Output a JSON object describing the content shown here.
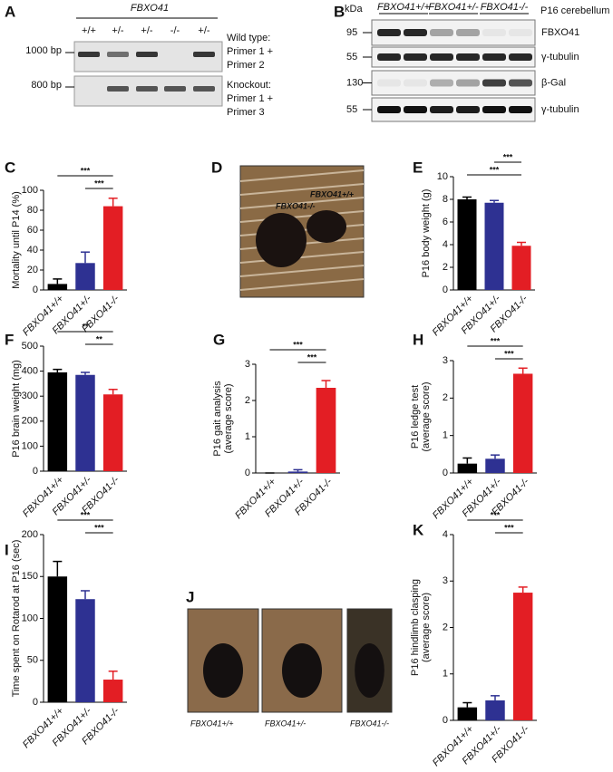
{
  "figure": {
    "A": {
      "label": "A",
      "gene": "FBXO41",
      "genotypes": [
        "+/+",
        "+/-",
        "+/-",
        "-/-",
        "+/-"
      ],
      "gels": [
        {
          "size": "1000 bp",
          "caption": [
            "Wild type:",
            "Primer 1 +",
            "Primer 2"
          ]
        },
        {
          "size": "800 bp",
          "caption": [
            "Knockout:",
            "Primer 1 +",
            "Primer 3"
          ]
        }
      ]
    },
    "B": {
      "label": "B",
      "unit": "kDa",
      "groups": [
        "FBXO41+/+",
        "FBXO41+/-",
        "FBXO41-/-"
      ],
      "tissue": "P16 cerebellum",
      "rows": [
        {
          "size": "95",
          "protein": "FBXO41"
        },
        {
          "size": "55",
          "protein": "γ-tubulin"
        },
        {
          "size": "130",
          "protein": "β-Gal"
        },
        {
          "size": "55",
          "protein": "γ-tubulin"
        }
      ]
    },
    "D": {
      "label": "D",
      "annotations": [
        "FBXO41+/+",
        "FBXO41-/-"
      ]
    },
    "J": {
      "label": "J",
      "captions": [
        "FBXO41+/+",
        "FBXO41+/-",
        "FBXO41-/-"
      ]
    }
  },
  "chart_data": [
    {
      "type": "bar",
      "panel": "C",
      "ylabel": [
        "Mortality until P14 (%)"
      ],
      "categories": [
        "FBXO41+/+",
        "FBXO41+/-",
        "FBXO41-/-"
      ],
      "values": [
        6,
        27,
        84
      ],
      "errors": [
        5,
        11,
        8
      ],
      "colors": [
        "#000000",
        "#2e3192",
        "#e31e24"
      ],
      "ylim": [
        0,
        100
      ],
      "yticks": [
        0,
        20,
        40,
        60,
        80,
        100
      ],
      "significance": [
        {
          "label": "***",
          "pair": [
            "FBXO41+/+",
            "FBXO41-/-"
          ]
        },
        {
          "label": "***",
          "pair": [
            "FBXO41+/-",
            "FBXO41-/-"
          ]
        }
      ]
    },
    {
      "type": "bar",
      "panel": "E",
      "ylabel": [
        "P16 body weight (g)"
      ],
      "categories": [
        "FBXO41+/+",
        "FBXO41+/-",
        "FBXO41-/-"
      ],
      "values": [
        8.0,
        7.7,
        3.9
      ],
      "errors": [
        0.2,
        0.2,
        0.3
      ],
      "colors": [
        "#000000",
        "#2e3192",
        "#e31e24"
      ],
      "ylim": [
        0,
        10
      ],
      "yticks": [
        0,
        2,
        4,
        6,
        8,
        10
      ],
      "significance": [
        {
          "label": "***",
          "pair": [
            "FBXO41+/-",
            "FBXO41-/-"
          ]
        },
        {
          "label": "***",
          "pair": [
            "FBXO41+/+",
            "FBXO41-/-"
          ]
        }
      ]
    },
    {
      "type": "bar",
      "panel": "F",
      "ylabel": [
        "P16 brain weight (mg)"
      ],
      "categories": [
        "FBXO41+/+",
        "FBXO41+/-",
        "FBXO41-/-"
      ],
      "values": [
        395,
        385,
        307
      ],
      "errors": [
        12,
        10,
        20
      ],
      "colors": [
        "#000000",
        "#2e3192",
        "#e31e24"
      ],
      "ylim": [
        0,
        500
      ],
      "yticks": [
        0,
        100,
        200,
        300,
        400,
        500
      ],
      "significance": [
        {
          "label": "**",
          "pair": [
            "FBXO41+/+",
            "FBXO41-/-"
          ]
        },
        {
          "label": "**",
          "pair": [
            "FBXO41+/-",
            "FBXO41-/-"
          ]
        }
      ]
    },
    {
      "type": "bar",
      "panel": "G",
      "ylabel": [
        "P16 gait analysis",
        "(average score)"
      ],
      "categories": [
        "FBXO41+/+",
        "FBXO41+/-",
        "FBXO41-/-"
      ],
      "values": [
        0,
        0.04,
        2.35
      ],
      "errors": [
        0,
        0.05,
        0.2
      ],
      "colors": [
        "#000000",
        "#2e3192",
        "#e31e24"
      ],
      "ylim": [
        0,
        3
      ],
      "yticks": [
        0,
        1,
        2,
        3
      ],
      "significance": [
        {
          "label": "***",
          "pair": [
            "FBXO41+/+",
            "FBXO41-/-"
          ]
        },
        {
          "label": "***",
          "pair": [
            "FBXO41+/-",
            "FBXO41-/-"
          ]
        }
      ]
    },
    {
      "type": "bar",
      "panel": "H",
      "ylabel": [
        "P16 ledge test",
        "(average score)"
      ],
      "categories": [
        "FBXO41+/+",
        "FBXO41+/-",
        "FBXO41-/-"
      ],
      "values": [
        0.25,
        0.38,
        2.65
      ],
      "errors": [
        0.15,
        0.1,
        0.15
      ],
      "colors": [
        "#000000",
        "#2e3192",
        "#e31e24"
      ],
      "ylim": [
        0,
        3
      ],
      "yticks": [
        0,
        1,
        2,
        3
      ],
      "significance": [
        {
          "label": "***",
          "pair": [
            "FBXO41+/+",
            "FBXO41-/-"
          ]
        },
        {
          "label": "***",
          "pair": [
            "FBXO41+/-",
            "FBXO41-/-"
          ]
        }
      ]
    },
    {
      "type": "bar",
      "panel": "I",
      "ylabel": [
        "Time spent on Rotarod at P16 (sec)"
      ],
      "categories": [
        "FBXO41+/+",
        "FBXO41+/-",
        "FBXO41-/-"
      ],
      "values": [
        150,
        123,
        27
      ],
      "errors": [
        18,
        10,
        10
      ],
      "colors": [
        "#000000",
        "#2e3192",
        "#e31e24"
      ],
      "ylim": [
        0,
        200
      ],
      "yticks": [
        0,
        50,
        100,
        150,
        200
      ],
      "significance": [
        {
          "label": "***",
          "pair": [
            "FBXO41+/+",
            "FBXO41-/-"
          ]
        },
        {
          "label": "***",
          "pair": [
            "FBXO41+/-",
            "FBXO41-/-"
          ]
        }
      ]
    },
    {
      "type": "bar",
      "panel": "K",
      "ylabel": [
        "P16 hindlimb clasping",
        "(average score)"
      ],
      "categories": [
        "FBXO41+/+",
        "FBXO41+/-",
        "FBXO41-/-"
      ],
      "values": [
        0.28,
        0.43,
        2.75
      ],
      "errors": [
        0.1,
        0.1,
        0.12
      ],
      "colors": [
        "#000000",
        "#2e3192",
        "#e31e24"
      ],
      "ylim": [
        0,
        4
      ],
      "yticks": [
        0,
        1,
        2,
        3,
        4
      ],
      "significance": [
        {
          "label": "***",
          "pair": [
            "FBXO41+/+",
            "FBXO41-/-"
          ]
        },
        {
          "label": "***",
          "pair": [
            "FBXO41+/-",
            "FBXO41-/-"
          ]
        }
      ]
    }
  ]
}
